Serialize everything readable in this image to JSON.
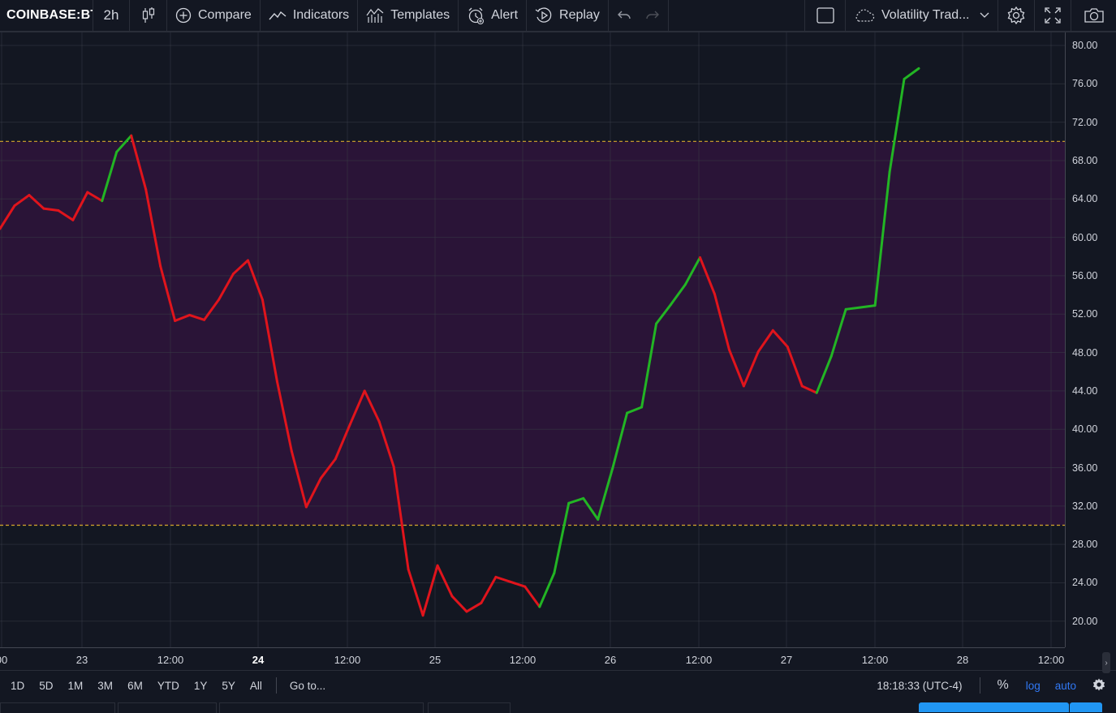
{
  "toolbar": {
    "symbol": "COINBASE:BTCUSD",
    "interval": "2h",
    "compare_label": "Compare",
    "indicators_label": "Indicators",
    "templates_label": "Templates",
    "alert_label": "Alert",
    "replay_label": "Replay",
    "layout_name": "Volatility Trad..."
  },
  "colors": {
    "background": "#131722",
    "band_fill": "#2a1437",
    "band_line": "#d4a72c",
    "rsi_up": "#22b524",
    "rsi_down": "#e0141c",
    "grid": "#2a2e39"
  },
  "chart_data": {
    "type": "line",
    "series": [
      {
        "values": [
          60.9,
          63.3,
          64.4,
          63.0,
          62.8,
          61.8,
          64.7,
          63.8,
          68.9,
          70.6,
          65.0,
          57.0,
          51.3,
          51.9,
          51.4,
          53.5,
          56.2,
          57.6,
          53.5,
          45.0,
          37.7,
          31.9,
          34.9,
          36.9,
          40.5,
          44.0,
          40.8,
          36.1,
          25.4,
          20.6,
          25.8,
          22.6,
          21.0,
          21.9,
          24.6,
          24.1,
          23.6,
          21.5,
          25.0,
          32.3,
          32.8,
          30.6,
          35.9,
          41.7,
          42.3,
          51.0,
          53.0,
          55.1,
          57.9,
          54.1,
          48.3,
          44.5,
          48.1,
          50.3,
          48.6,
          44.5,
          43.8,
          47.6,
          52.5,
          52.7,
          52.9,
          66.8,
          76.5,
          77.6
        ],
        "colors": [
          "down",
          "down",
          "down",
          "down",
          "down",
          "down",
          "down",
          "up",
          "up",
          "down",
          "down",
          "down",
          "down",
          "down",
          "down",
          "down",
          "down",
          "down",
          "down",
          "down",
          "down",
          "down",
          "down",
          "down",
          "down",
          "down",
          "down",
          "down",
          "down",
          "down",
          "down",
          "down",
          "down",
          "down",
          "down",
          "down",
          "down",
          "up",
          "up",
          "up",
          "up",
          "up",
          "up",
          "up",
          "up",
          "up",
          "up",
          "up",
          "down",
          "down",
          "down",
          "down",
          "down",
          "down",
          "down",
          "down",
          "up",
          "up",
          "up",
          "up",
          "up",
          "up",
          "up"
        ]
      }
    ],
    "bands": {
      "upper": 70,
      "lower": 30
    },
    "y_ticks": [
      "80.00",
      "76.00",
      "72.00",
      "68.00",
      "64.00",
      "60.00",
      "56.00",
      "52.00",
      "48.00",
      "44.00",
      "40.00",
      "36.00",
      "32.00",
      "28.00",
      "24.00",
      "20.00"
    ],
    "x_ticks": [
      "00",
      "23",
      "12:00",
      "24",
      "12:00",
      "25",
      "12:00",
      "26",
      "12:00",
      "27",
      "12:00",
      "28",
      "12:00"
    ],
    "x_ticks_bold": [
      false,
      false,
      false,
      true,
      false,
      false,
      false,
      false,
      false,
      false,
      false,
      false,
      false
    ],
    "grid": true
  },
  "bottom": {
    "ranges": [
      "1D",
      "5D",
      "1M",
      "3M",
      "6M",
      "YTD",
      "1Y",
      "5Y",
      "All"
    ],
    "goto_label": "Go to...",
    "clock": "18:18:33 (UTC-4)",
    "percent_label": "%",
    "log_label": "log",
    "auto_label": "auto"
  }
}
